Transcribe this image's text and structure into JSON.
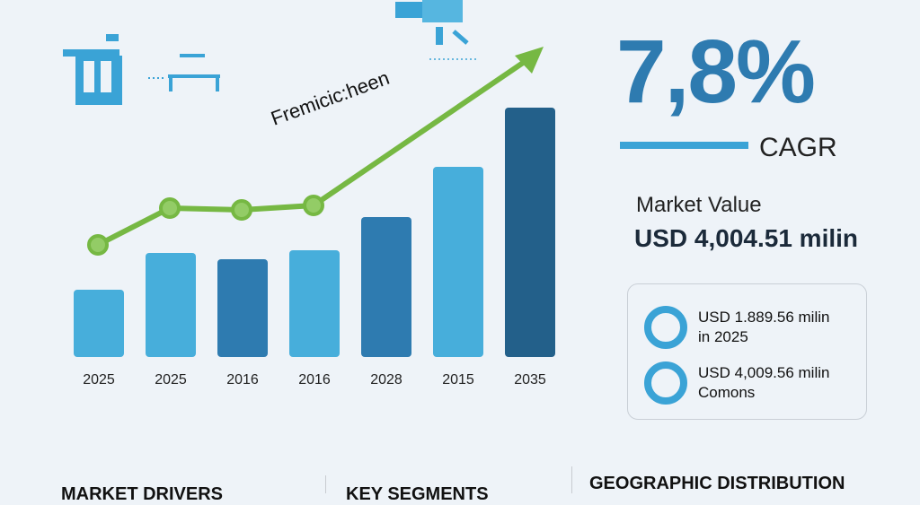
{
  "chart_data": {
    "type": "bar",
    "categories": [
      "2025",
      "2025",
      "2016",
      "2016",
      "2028",
      "2015",
      "2035"
    ],
    "values": [
      75,
      116,
      109,
      119,
      156,
      212,
      278
    ],
    "bar_colors": [
      "#47aedb",
      "#47aedb",
      "#2e7bb0",
      "#47aedb",
      "#2e7bb0",
      "#47aedb",
      "#23608a"
    ],
    "trend_line": {
      "label": "Fremicic:heen",
      "values": [
        125,
        166,
        164,
        169
      ],
      "color": "#76b843"
    },
    "grid": false
  },
  "kpi": {
    "cagr_value": "7,8%",
    "cagr_label": "CAGR",
    "market_value_label": "Market Value",
    "market_value": "USD 4,004.51 milin"
  },
  "card": {
    "items": [
      {
        "icon": "gauge-icon",
        "line1": "USD 1.889.56 milin",
        "line2": "in 2025"
      },
      {
        "icon": "check-gauge-icon",
        "line1": "USD 4,009.56 milin",
        "line2": "Comons"
      }
    ]
  },
  "footer": {
    "sections": [
      "MARKET DRIVERS",
      "KEY SEGMENTS",
      "GEOGRAPHIC DISTRIBUTION"
    ]
  },
  "colors": {
    "accent": "#2e7bb0",
    "light": "#47aedb",
    "green": "#76b843"
  }
}
